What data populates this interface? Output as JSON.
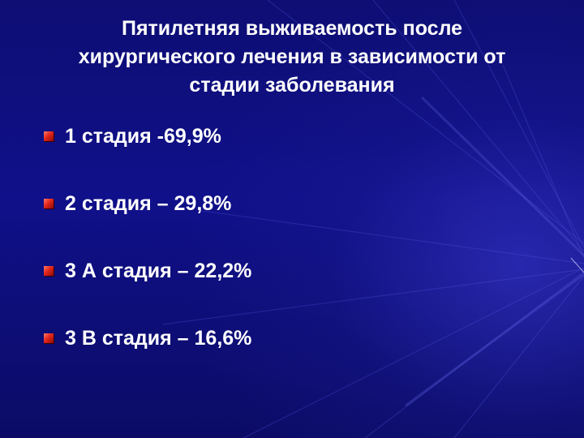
{
  "slide": {
    "title_lines": [
      "Пятилетняя выживаемость после",
      "хирургического лечения в зависимости от",
      "стадии заболевания"
    ],
    "bullets": [
      {
        "text": "1 стадия -69,9%",
        "icon": "red-square-bullet-icon"
      },
      {
        "text": "2 стадия – 29,8%",
        "icon": "red-square-bullet-icon"
      },
      {
        "text": "3 А стадия – 22,2%",
        "icon": "red-square-bullet-icon"
      },
      {
        "text": "3 В стадия – 16,6%",
        "icon": "red-square-bullet-icon"
      }
    ],
    "colors": {
      "background": "#10108a",
      "text": "#ffffff",
      "bullet": "#e3261c"
    }
  }
}
